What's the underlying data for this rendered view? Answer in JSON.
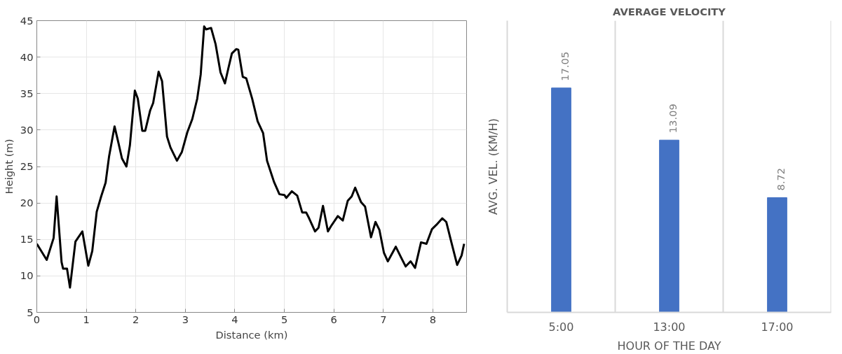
{
  "chart_data": [
    {
      "type": "line",
      "xlabel": "Distance (km)",
      "ylabel": "Height (m)",
      "xlim": [
        0,
        8.68
      ],
      "ylim": [
        5,
        45
      ],
      "xticks": [
        0,
        1,
        2,
        3,
        4,
        5,
        6,
        7,
        8
      ],
      "yticks": [
        5,
        10,
        15,
        20,
        25,
        30,
        35,
        40,
        45
      ],
      "grid": true,
      "marker": "none",
      "line_style": "solid",
      "series": [
        {
          "color": "#000000",
          "x": [
            0,
            0.2,
            0.34,
            0.4,
            0.5,
            0.53,
            0.61,
            0.67,
            0.78,
            0.83,
            0.92,
            1.04,
            1.12,
            1.21,
            1.3,
            1.39,
            1.46,
            1.57,
            1.65,
            1.72,
            1.81,
            1.88,
            1.98,
            2.04,
            2.13,
            2.19,
            2.29,
            2.35,
            2.46,
            2.53,
            2.63,
            2.7,
            2.83,
            2.93,
            3.04,
            3.14,
            3.24,
            3.31,
            3.38,
            3.42,
            3.52,
            3.61,
            3.71,
            3.8,
            3.87,
            3.94,
            4.03,
            4.07,
            4.16,
            4.23,
            4.35,
            4.46,
            4.57,
            4.65,
            4.79,
            4.9,
            5.0,
            5.04,
            5.15,
            5.26,
            5.36,
            5.44,
            5.5,
            5.62,
            5.69,
            5.78,
            5.88,
            5.94,
            6.08,
            6.18,
            6.28,
            6.36,
            6.43,
            6.55,
            6.63,
            6.75,
            6.84,
            6.92,
            7.01,
            7.09,
            7.25,
            7.36,
            7.45,
            7.55,
            7.64,
            7.76,
            7.87,
            7.98,
            8.07,
            8.19,
            8.27,
            8.37,
            8.49,
            8.58,
            8.63
          ],
          "values": [
            14.4,
            12.2,
            15.2,
            20.9,
            11.9,
            11.0,
            11.0,
            8.4,
            14.7,
            15.2,
            16.1,
            11.4,
            13.4,
            18.8,
            20.9,
            22.8,
            26.4,
            30.5,
            28.2,
            26.1,
            25.0,
            27.9,
            35.4,
            34.3,
            29.9,
            29.9,
            32.7,
            33.7,
            38.0,
            36.7,
            29.1,
            27.6,
            25.8,
            27.0,
            29.7,
            31.5,
            34.3,
            37.6,
            44.2,
            43.8,
            44.0,
            41.8,
            37.9,
            36.4,
            38.5,
            40.5,
            41.1,
            41.0,
            37.3,
            37.1,
            34.3,
            31.2,
            29.6,
            25.8,
            22.9,
            21.2,
            21.1,
            20.7,
            21.6,
            21.0,
            18.7,
            18.7,
            17.9,
            16.1,
            16.6,
            19.6,
            16.1,
            16.8,
            18.2,
            17.6,
            20.3,
            20.9,
            22.1,
            20.1,
            19.5,
            15.3,
            17.4,
            16.3,
            13.2,
            12.0,
            14.0,
            12.5,
            11.3,
            12.0,
            11.1,
            14.6,
            14.4,
            16.4,
            17.0,
            17.9,
            17.4,
            14.7,
            11.5,
            12.8,
            14.4
          ]
        }
      ]
    },
    {
      "type": "bar",
      "title": "AVERAGE VELOCITY",
      "xlabel": "HOUR OF THE DAY",
      "ylabel": "AVG. VEL. (KM/H)",
      "categories": [
        "5:00",
        "13:00",
        "17:00"
      ],
      "values": [
        17.05,
        13.09,
        8.72
      ],
      "color": "#4472c4",
      "data_labels": true,
      "grid": "x"
    }
  ]
}
